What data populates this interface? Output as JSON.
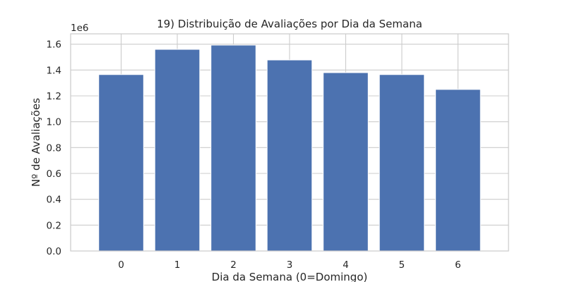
{
  "chart_data": {
    "type": "bar",
    "title": "19) Distribuição de Avaliações por Dia da Semana",
    "xlabel": "Dia da Semana (0=Domingo)",
    "ylabel": "Nº de Avaliações",
    "y_offset_label": "1e6",
    "categories": [
      "0",
      "1",
      "2",
      "3",
      "4",
      "5",
      "6"
    ],
    "values": [
      1365000,
      1560000,
      1593000,
      1478000,
      1380000,
      1365000,
      1250000
    ],
    "ylim": [
      0,
      1680000
    ],
    "yticks": [
      0,
      200000,
      400000,
      600000,
      800000,
      1000000,
      1200000,
      1400000,
      1600000
    ],
    "ytick_labels": [
      "0.0",
      "0.2",
      "0.4",
      "0.6",
      "0.8",
      "1.0",
      "1.2",
      "1.4",
      "1.6"
    ],
    "grid": true,
    "bar_color": "#4c72b0",
    "grid_color": "#cccccc",
    "axes_edge_color": "#cccccc"
  }
}
